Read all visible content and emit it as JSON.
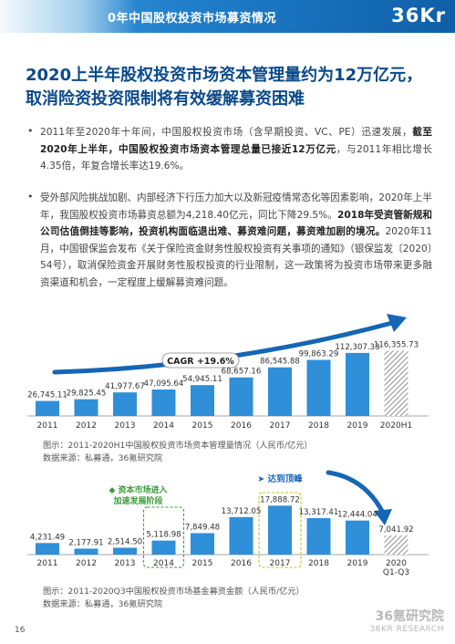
{
  "header": {
    "title": "0年中国股权投资市场募资情况",
    "logo": "36Kr"
  },
  "main_title": "2020上半年股权投资市场资本管理量约为12万亿元，取消险资投资限制将有效缓解募资困难",
  "paragraph1": {
    "bullet": "•",
    "t1": "2011年至2020年十年间，中国股权投资市场（含早期投资、VC、PE）迅速发展，",
    "b1": "截至2020年上半年，中国股权投资市场资本管理总量已接近12万亿元",
    "t2": "，与2011年相比增长4.35倍，年复合增长率达19.6%。"
  },
  "paragraph2": {
    "bullet": "•",
    "t1": "受外部风险挑战加剧、内部经济下行压力加大以及新冠疫情常态化等因素影响，2020年上半年，我国股权投资市场募资总额为4,218.40亿元，同比下降29.5%。",
    "b1": "2018年受资管新规和公司估值倒挂等影响，投资机构面临退出难、募资难问题，募资难加剧的境况。",
    "t2": "2020年11月，中国银保监会发布《关于保险资金财务性股权投资有关事项的通知》（银保监发〔2020〕54号），取消保险资金开展财务性股权投资的行业限制，这一政策将为投资市场带来更多融资渠道和机会，一定程度上缓解募资难问题。"
  },
  "captions": {
    "chart1": "图示：2011-2020H1中国股权投资市场资本管理量情况（人民币/亿元）",
    "chart1_source": "数据来源：私募通，36氪研究院",
    "chart2": "图示：2011-2020Q3中国股权投资市场基金募资金额（人民币/亿元）",
    "chart2_source": "数据来源：私募通，36氪研究院"
  },
  "page_number": "16",
  "watermark": {
    "line1": "36氪研究院",
    "line2": "36KR RESEARCH"
  },
  "chart_data": [
    {
      "type": "bar",
      "categories": [
        "2011",
        "2012",
        "2013",
        "2014",
        "2015",
        "2016",
        "2017",
        "2018",
        "2019",
        "2020H1"
      ],
      "values": [
        26745.11,
        29825.45,
        41977.67,
        47095.64,
        54945.11,
        68657.16,
        86545.88,
        99863.29,
        112307.33,
        116355.73
      ],
      "value_labels": [
        "26,745.11",
        "29,825.45",
        "41,977.67",
        "47,095.64",
        "54,945.11",
        "68,657.16",
        "86,545.88",
        "99,863.29",
        "112,307.33",
        "116,355.73"
      ],
      "annotation": "CAGR +19.6%",
      "last_bar_style": "hatched",
      "colors": {
        "bar": "#2f8fd8",
        "hatched": "#9a9a9a",
        "arrow": "#1566b4"
      },
      "ylim": [
        0,
        130000
      ]
    },
    {
      "type": "bar",
      "categories": [
        "2011",
        "2012",
        "2013",
        "2014",
        "2015",
        "2016",
        "2017",
        "2018",
        "2019",
        "2020\nQ1-Q3"
      ],
      "values": [
        4231.49,
        2177.91,
        2514.5,
        5118.98,
        7849.48,
        13712.05,
        17888.72,
        13317.41,
        12444.04,
        7041.92
      ],
      "value_labels": [
        "4,231.49",
        "2,177.91",
        "2,514.50",
        "5,118.98",
        "7,849.48",
        "13,712.05",
        "17,888.72",
        "13,317.41",
        "12,444.04",
        "7,041.92"
      ],
      "annotations": [
        {
          "text1": "资本市场进入",
          "text2": "加速发展阶段",
          "category": "2014"
        },
        {
          "text1": "达到顶峰",
          "category": "2017"
        }
      ],
      "last_bar_style": "hatched",
      "colors": {
        "bar": "#2f8fd8",
        "hatched": "#9a9a9a",
        "highlight": "#3a9b3a",
        "highlight2": "#c8c020",
        "arrow": "#1566b4"
      },
      "ylim": [
        0,
        20000
      ]
    }
  ]
}
